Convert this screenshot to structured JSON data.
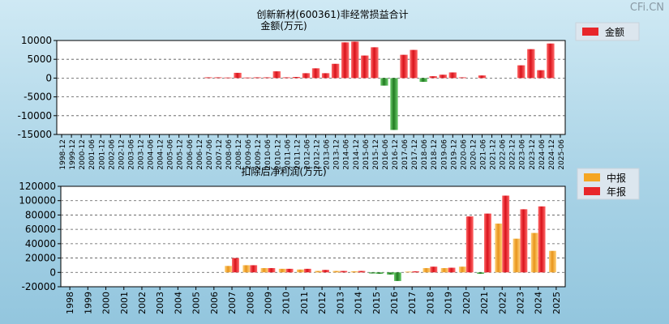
{
  "watermark": "CFi.CN",
  "chart_data": [
    {
      "type": "bar",
      "title": "创新新材(600361)非经常损益合计",
      "ylabel": "金额(万元)",
      "ylim": [
        -15000,
        10000
      ],
      "yticks": [
        10000,
        5000,
        0,
        -5000,
        -10000,
        -15000
      ],
      "grid": true,
      "legend_position": "top-right",
      "colors": {
        "positive": "#e8262a",
        "negative": "#2e8b2e"
      },
      "categories": [
        "1998-12",
        "1999-12",
        "2000-12",
        "2001-06",
        "2001-12",
        "2002-06",
        "2002-12",
        "2003-06",
        "2003-12",
        "2004-06",
        "2004-12",
        "2005-06",
        "2005-12",
        "2006-06",
        "2006-12",
        "2007-06",
        "2007-12",
        "2008-06",
        "2008-12",
        "2009-06",
        "2009-12",
        "2010-06",
        "2010-12",
        "2011-06",
        "2011-12",
        "2012-06",
        "2012-12",
        "2013-06",
        "2013-12",
        "2014-06",
        "2014-12",
        "2015-06",
        "2015-12",
        "2016-06",
        "2016-12",
        "2017-06",
        "2017-12",
        "2018-06",
        "2018-12",
        "2019-06",
        "2019-12",
        "2020-06",
        "2020-12",
        "2021-06",
        "2021-12",
        "2022-06",
        "2022-12",
        "2023-06",
        "2023-12",
        "2024-06",
        "2024-12",
        "2025-06"
      ],
      "series": [
        {
          "name": "金额",
          "values": [
            0,
            0,
            0,
            0,
            0,
            0,
            0,
            0,
            0,
            0,
            0,
            0,
            0,
            0,
            0,
            200,
            200,
            150,
            1400,
            150,
            200,
            200,
            1800,
            200,
            300,
            1300,
            2600,
            1300,
            3800,
            9500,
            9700,
            6000,
            8200,
            -2000,
            -13800,
            6200,
            7500,
            -1000,
            500,
            900,
            1500,
            200,
            0,
            700,
            0,
            0,
            0,
            3400,
            7700,
            2100,
            9200,
            0
          ]
        }
      ]
    },
    {
      "type": "bar",
      "title": "扣除后净利润(万元)",
      "ylim": [
        -20000,
        120000
      ],
      "yticks": [
        120000,
        100000,
        80000,
        60000,
        40000,
        20000,
        0,
        -20000
      ],
      "grid": true,
      "legend_position": "top-right",
      "colors": {
        "中报": "#f5a623",
        "年报": "#e8262a"
      },
      "categories": [
        "1998",
        "1999",
        "2000",
        "2001",
        "2002",
        "2003",
        "2004",
        "2005",
        "2006",
        "2007",
        "2008",
        "2009",
        "2010",
        "2011",
        "2012",
        "2013",
        "2014",
        "2015",
        "2016",
        "2017",
        "2018",
        "2019",
        "2020",
        "2021",
        "2022",
        "2023",
        "2024",
        "2025"
      ],
      "series": [
        {
          "name": "中报",
          "values": [
            null,
            null,
            null,
            0,
            0,
            0,
            0,
            0,
            0,
            9000,
            10000,
            6000,
            5000,
            4000,
            2000,
            2000,
            1500,
            -1500,
            -3000,
            1000,
            6000,
            6000,
            8000,
            -2000,
            68000,
            47000,
            55000,
            30000
          ]
        },
        {
          "name": "年报",
          "values": [
            0,
            0,
            0,
            0,
            0,
            0,
            0,
            0,
            0,
            20000,
            10000,
            6000,
            5000,
            5000,
            3500,
            2000,
            2000,
            -2000,
            -12000,
            1500,
            8000,
            6500,
            78000,
            82000,
            107000,
            88000,
            92000,
            null
          ]
        }
      ]
    }
  ]
}
